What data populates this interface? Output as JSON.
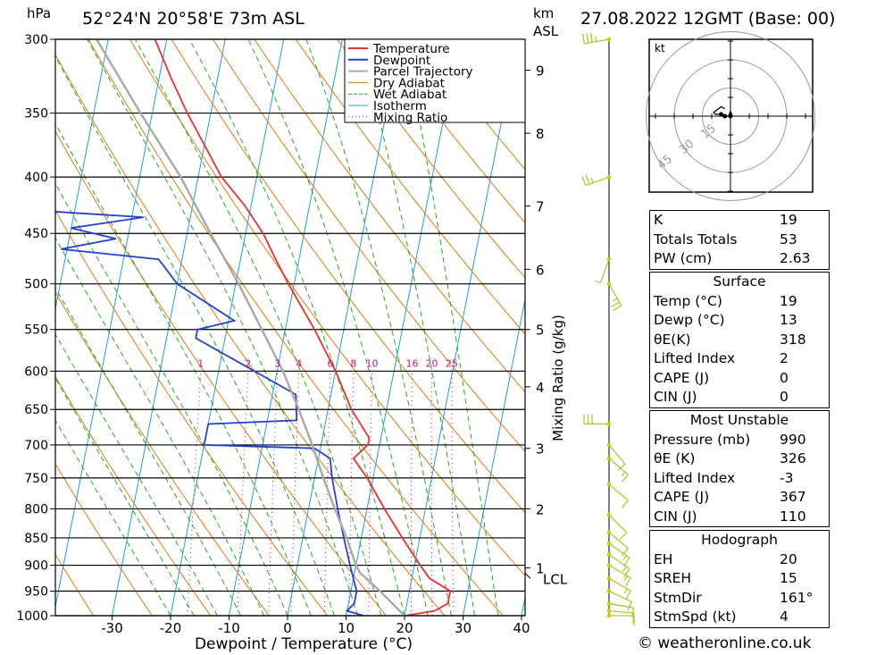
{
  "header": {
    "pressure_unit": "hPa",
    "location": "52°24'N  20°58'E  73m  ASL",
    "km_label": "km",
    "asl_label": "ASL",
    "datetime": "27.08.2022  12GMT  (Base: 00)"
  },
  "footer": {
    "credit": "© weatheronline.co.uk"
  },
  "colors": {
    "temperature": "#e8322e",
    "dewpoint": "#2244cc",
    "parcel": "#aaaaaa",
    "dry_adiabat": "#e07a10",
    "wet_adiabat": "#22aa22",
    "isotherm": "#1e9ee0",
    "mixing_ratio": "#cc1177",
    "wind": "#aacc33"
  },
  "chart_data": {
    "type": "line",
    "title": "",
    "xlabel": "Dewpoint / Temperature (°C)",
    "ylabel": "",
    "mixing_ratio_axis_label": "Mixing Ratio (g/kg)",
    "x_ticks": [
      -30,
      -20,
      -10,
      0,
      10,
      20,
      30,
      40
    ],
    "y_ticks": [
      300,
      350,
      400,
      450,
      500,
      550,
      600,
      650,
      700,
      750,
      800,
      850,
      900,
      950,
      1000
    ],
    "km_ticks": [
      {
        "km": "9",
        "p": 320
      },
      {
        "km": "8",
        "p": 365
      },
      {
        "km": "7",
        "p": 425
      },
      {
        "km": "6",
        "p": 485
      },
      {
        "km": "5",
        "p": 550
      },
      {
        "km": "4",
        "p": 620
      },
      {
        "km": "3",
        "p": 705
      },
      {
        "km": "2",
        "p": 800
      },
      {
        "km": "1",
        "p": 905
      }
    ],
    "lcl": {
      "label": "LCL",
      "p": 915
    },
    "mixing_ratio_labels": [
      "1",
      "2",
      "3",
      "4",
      "6",
      "8",
      "10",
      "16",
      "20",
      "25"
    ],
    "legend": {
      "placement": "top-right",
      "entries": [
        "Temperature",
        "Dewpoint",
        "Parcel Trajectory",
        "Dry Adiabat",
        "Wet Adiabat",
        "Isotherm",
        "Mixing Ratio"
      ]
    },
    "grid": true,
    "series": [
      {
        "name": "Temperature",
        "points": [
          [
            1000,
            20
          ],
          [
            990,
            25
          ],
          [
            975,
            27
          ],
          [
            950,
            27
          ],
          [
            925,
            23
          ],
          [
            900,
            21
          ],
          [
            850,
            17
          ],
          [
            800,
            13
          ],
          [
            750,
            9
          ],
          [
            720,
            6
          ],
          [
            700,
            8
          ],
          [
            690,
            8
          ],
          [
            650,
            4
          ],
          [
            600,
            0
          ],
          [
            550,
            -5
          ],
          [
            500,
            -11
          ],
          [
            475,
            -14
          ],
          [
            450,
            -17
          ],
          [
            425,
            -21
          ],
          [
            400,
            -26
          ],
          [
            350,
            -34
          ],
          [
            325,
            -38
          ],
          [
            300,
            -42
          ]
        ]
      },
      {
        "name": "Dewpoint",
        "points": [
          [
            1000,
            13
          ],
          [
            990,
            10
          ],
          [
            975,
            11
          ],
          [
            950,
            11
          ],
          [
            925,
            10
          ],
          [
            900,
            9
          ],
          [
            850,
            7
          ],
          [
            800,
            5
          ],
          [
            750,
            3
          ],
          [
            720,
            2
          ],
          [
            705,
            -1
          ],
          [
            700,
            -20
          ],
          [
            690,
            -20
          ],
          [
            670,
            -20
          ],
          [
            665,
            -5
          ],
          [
            630,
            -6
          ],
          [
            560,
            -25
          ],
          [
            550,
            -25
          ],
          [
            540,
            -19
          ],
          [
            500,
            -30
          ],
          [
            475,
            -34
          ],
          [
            465,
            -51
          ],
          [
            455,
            -42
          ],
          [
            445,
            -50
          ],
          [
            435,
            -38
          ],
          [
            425,
            -69
          ],
          [
            400,
            -60
          ],
          [
            350,
            -68
          ],
          [
            325,
            -72
          ],
          [
            313,
            -86
          ],
          [
            300,
            -92
          ]
        ]
      },
      {
        "name": "Parcel Trajectory",
        "points": [
          [
            1000,
            20
          ],
          [
            950,
            15
          ],
          [
            915,
            11
          ],
          [
            900,
            10
          ],
          [
            850,
            7.5
          ],
          [
            800,
            4.5
          ],
          [
            750,
            1.5
          ],
          [
            700,
            -1.5
          ],
          [
            650,
            -5
          ],
          [
            600,
            -9
          ],
          [
            550,
            -14
          ],
          [
            500,
            -19.5
          ],
          [
            450,
            -26
          ],
          [
            400,
            -33
          ],
          [
            350,
            -42
          ],
          [
            300,
            -52
          ]
        ]
      }
    ],
    "hodograph": {
      "unit": "kt",
      "ring_labels": [
        "15",
        "30",
        "45"
      ],
      "trace_kt": [
        [
          0,
          0
        ],
        [
          -3,
          0
        ],
        [
          -5,
          1
        ],
        [
          -8,
          1
        ],
        [
          -9,
          2
        ],
        [
          -5,
          5
        ],
        [
          -3,
          4
        ]
      ]
    },
    "wind_barbs": [
      {
        "p": 300,
        "dir": 260,
        "kt": 35
      },
      {
        "p": 400,
        "dir": 250,
        "kt": 25
      },
      {
        "p": 475,
        "dir": 200,
        "kt": 5
      },
      {
        "p": 500,
        "dir": 150,
        "kt": 25
      },
      {
        "p": 670,
        "dir": 270,
        "kt": 30
      },
      {
        "p": 700,
        "dir": 140,
        "kt": 10
      },
      {
        "p": 720,
        "dir": 130,
        "kt": 15
      },
      {
        "p": 760,
        "dir": 130,
        "kt": 10
      },
      {
        "p": 810,
        "dir": 135,
        "kt": 10
      },
      {
        "p": 840,
        "dir": 130,
        "kt": 12
      },
      {
        "p": 860,
        "dir": 125,
        "kt": 15
      },
      {
        "p": 880,
        "dir": 125,
        "kt": 15
      },
      {
        "p": 900,
        "dir": 120,
        "kt": 15
      },
      {
        "p": 925,
        "dir": 120,
        "kt": 15
      },
      {
        "p": 950,
        "dir": 115,
        "kt": 12
      },
      {
        "p": 975,
        "dir": 100,
        "kt": 10
      },
      {
        "p": 990,
        "dir": 95,
        "kt": 10
      },
      {
        "p": 1000,
        "dir": 90,
        "kt": 8
      }
    ]
  },
  "indices": [
    {
      "label": "K",
      "value": "19"
    },
    {
      "label": "Totals Totals",
      "value": "53"
    },
    {
      "label": "PW (cm)",
      "value": "2.63"
    }
  ],
  "surface": {
    "title": "Surface",
    "rows": [
      {
        "label": "Temp (°C)",
        "value": "19"
      },
      {
        "label": "Dewp (°C)",
        "value": "13"
      },
      {
        "label": "θE(K)",
        "value": "318"
      },
      {
        "label": "Lifted Index",
        "value": "2"
      },
      {
        "label": "CAPE (J)",
        "value": "0"
      },
      {
        "label": "CIN (J)",
        "value": "0"
      }
    ]
  },
  "most_unstable": {
    "title": "Most Unstable",
    "rows": [
      {
        "label": "Pressure (mb)",
        "value": "990"
      },
      {
        "label": "θE (K)",
        "value": "326"
      },
      {
        "label": "Lifted Index",
        "value": "-3"
      },
      {
        "label": "CAPE (J)",
        "value": "367"
      },
      {
        "label": "CIN (J)",
        "value": "110"
      }
    ]
  },
  "hodograph_table": {
    "title": "Hodograph",
    "rows": [
      {
        "label": "EH",
        "value": "20"
      },
      {
        "label": "SREH",
        "value": "15"
      },
      {
        "label": "StmDir",
        "value": "161°"
      },
      {
        "label": "StmSpd (kt)",
        "value": "4"
      }
    ]
  }
}
